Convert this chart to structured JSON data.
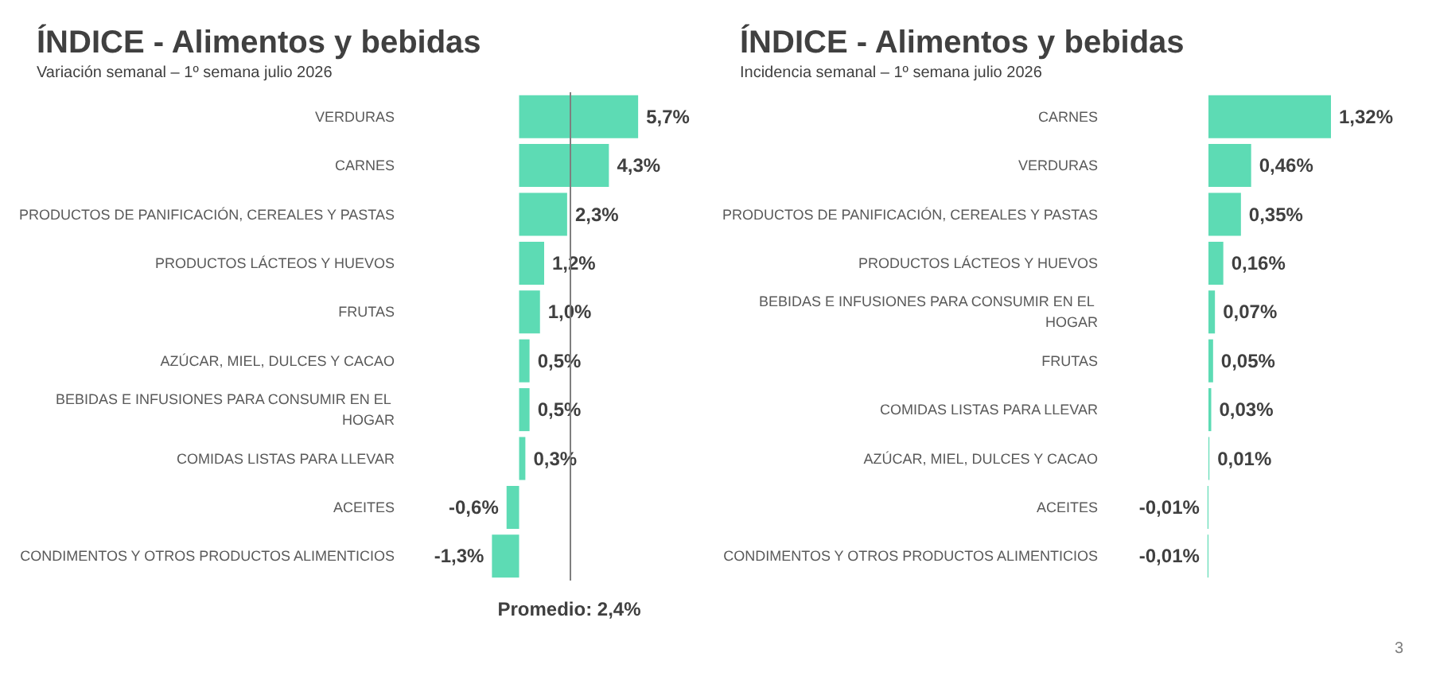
{
  "chart_data": [
    {
      "type": "bar",
      "orientation": "horizontal",
      "title": "ÍNDICE - Alimentos y bebidas",
      "subtitle": "Variación semanal – 1º semana julio 2026",
      "categories": [
        "VERDURAS",
        "CARNES",
        "PRODUCTOS DE PANIFICACIÓN, CEREALES Y PASTAS",
        "PRODUCTOS LÁCTEOS Y HUEVOS",
        "FRUTAS",
        "AZÚCAR, MIEL, DULCES Y CACAO",
        "BEBIDAS E INFUSIONES PARA CONSUMIR EN EL HOGAR",
        "COMIDAS LISTAS PARA LLEVAR",
        "ACEITES",
        "CONDIMENTOS Y OTROS PRODUCTOS ALIMENTICIOS"
      ],
      "values": [
        5.7,
        4.3,
        2.3,
        1.2,
        1.0,
        0.5,
        0.5,
        0.3,
        -0.6,
        -1.3
      ],
      "value_labels": [
        "5,7%",
        "4,3%",
        "2,3%",
        "1,2%",
        "1,0%",
        "0,5%",
        "0,5%",
        "0,3%",
        "-0,6%",
        "-1,3%"
      ],
      "color": "#5ddbb4",
      "ref_lines": [
        {
          "axis": "x",
          "value": 2.4,
          "label": "Promedio: 2,4%",
          "color": "#7f7f7f"
        }
      ]
    },
    {
      "type": "bar",
      "orientation": "horizontal",
      "title": "ÍNDICE - Alimentos y bebidas",
      "subtitle": "Incidencia semanal – 1º semana julio 2026",
      "categories": [
        "CARNES",
        "VERDURAS",
        "PRODUCTOS DE PANIFICACIÓN, CEREALES Y PASTAS",
        "PRODUCTOS LÁCTEOS Y HUEVOS",
        "BEBIDAS E INFUSIONES PARA CONSUMIR EN EL HOGAR",
        "FRUTAS",
        "COMIDAS LISTAS PARA LLEVAR",
        "AZÚCAR, MIEL, DULCES Y CACAO",
        "ACEITES",
        "CONDIMENTOS Y OTROS PRODUCTOS ALIMENTICIOS"
      ],
      "values": [
        1.32,
        0.46,
        0.35,
        0.16,
        0.07,
        0.05,
        0.03,
        0.01,
        -0.01,
        -0.01
      ],
      "value_labels": [
        "1,32%",
        "0,46%",
        "0,35%",
        "0,16%",
        "0,07%",
        "0,05%",
        "0,03%",
        "0,01%",
        "-0,01%",
        "-0,01%"
      ],
      "color": "#5ddbb4",
      "annotations": [
        "3"
      ]
    }
  ]
}
